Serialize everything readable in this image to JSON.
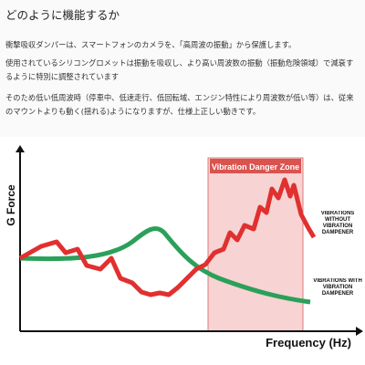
{
  "article": {
    "heading": "どのように機能するか",
    "paragraphs": [
      "衝撃吸収ダンパーは、スマートフォンのカメラを、「高周波の振動」から保護します。",
      "使用されているシリコングロメットは振動を吸収し、より高い周波数の振動（振動危険領域）で減衰するように特別に調整されています",
      "そのため低い低周波時（停車中、低速走行、低回転域、エンジン特性により周波数が低い等）は、従来のマウントよりも動く(揺れる)ようになりますが、仕様上正しい動きです。"
    ]
  },
  "figure": {
    "y_axis_label": "G Force",
    "x_axis_label": "Frequency (Hz)",
    "zone_label": "Vibration Danger Zone",
    "line_labels": [
      "VIBRATIONS WITHOUT VIBRATION DAMPENER",
      "VIBRATIONS WITH VIBRATION DAMPENER"
    ]
  }
}
